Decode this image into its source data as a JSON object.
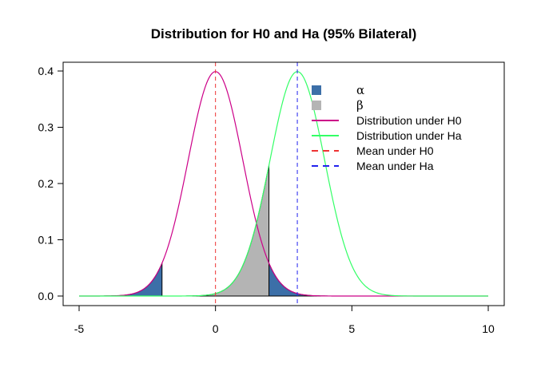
{
  "chart_data": {
    "type": "line",
    "title": "Distribution for H0 and Ha (95% Bilateral)",
    "xlabel": "",
    "ylabel": "",
    "xlim": [
      -5,
      10
    ],
    "ylim": [
      0,
      0.4
    ],
    "x_ticks": [
      -5,
      0,
      5,
      10
    ],
    "x_tick_labels": [
      "-5",
      "0",
      "5",
      "10"
    ],
    "y_ticks": [
      0.0,
      0.1,
      0.2,
      0.3,
      0.4
    ],
    "y_tick_labels": [
      "0.0",
      "0.1",
      "0.2",
      "0.3",
      "0.4"
    ],
    "series": [
      {
        "name": "Distribution under H0",
        "distribution": "normal",
        "mean": 0,
        "sd": 1,
        "color": "#CC0088",
        "style": "solid"
      },
      {
        "name": "Distribution under Ha",
        "distribution": "normal",
        "mean": 3,
        "sd": 1,
        "color": "#33FF66",
        "style": "solid"
      }
    ],
    "mean_lines": [
      {
        "name": "Mean under H0",
        "x": 0,
        "color": "#EE3333",
        "style": "dashed"
      },
      {
        "name": "Mean under Ha",
        "x": 3,
        "color": "#2222EE",
        "style": "dashed"
      }
    ],
    "shaded_regions": [
      {
        "name": "α",
        "color": "#3C6FA8",
        "under_mean": 0,
        "ranges": [
          [
            -5,
            -1.96
          ],
          [
            1.96,
            10
          ]
        ]
      },
      {
        "name": "β",
        "color": "#B4B4B4",
        "under_mean": 3,
        "ranges": [
          [
            -5,
            1.96
          ]
        ]
      }
    ],
    "critical_value": 1.96,
    "legend": {
      "position": "top-right",
      "entries": [
        {
          "label": "α",
          "kind": "fill",
          "color": "#3C6FA8"
        },
        {
          "label": "β",
          "kind": "fill",
          "color": "#B4B4B4"
        },
        {
          "label": "Distribution under H0",
          "kind": "line",
          "color": "#CC0088",
          "style": "solid"
        },
        {
          "label": "Distribution under Ha",
          "kind": "line",
          "color": "#33FF66",
          "style": "solid"
        },
        {
          "label": "Mean under H0",
          "kind": "line",
          "color": "#EE3333",
          "style": "dashed"
        },
        {
          "label": "Mean under Ha",
          "kind": "line",
          "color": "#2222EE",
          "style": "dashed"
        }
      ]
    }
  }
}
